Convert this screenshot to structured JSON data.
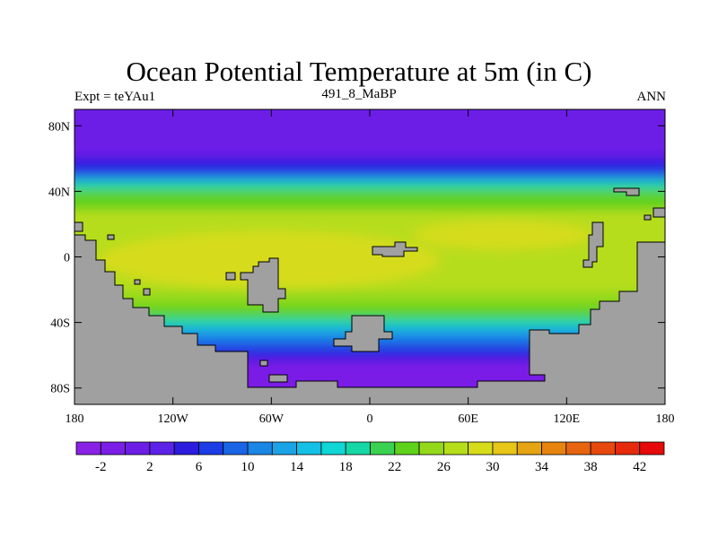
{
  "title": "Ocean Potential Temperature at 5m (in C)",
  "subtitle_left": "Expt = teYAu1",
  "subtitle_center": "491_8_MaBP",
  "subtitle_right": "ANN",
  "chart_data": {
    "type": "heatmap",
    "variable": "Ocean Potential Temperature",
    "units": "C",
    "depth": "5m",
    "x_range": [
      -180,
      180
    ],
    "y_range": [
      -90,
      90
    ],
    "x_ticks": [
      {
        "value": -180,
        "label": "180"
      },
      {
        "value": -120,
        "label": "120W"
      },
      {
        "value": -60,
        "label": "60W"
      },
      {
        "value": 0,
        "label": "0"
      },
      {
        "value": 60,
        "label": "60E"
      },
      {
        "value": 120,
        "label": "120E"
      },
      {
        "value": 180,
        "label": "180"
      }
    ],
    "y_ticks": [
      {
        "value": 80,
        "label": "80N"
      },
      {
        "value": 40,
        "label": "40N"
      },
      {
        "value": 0,
        "label": "0"
      },
      {
        "value": -40,
        "label": "40S"
      },
      {
        "value": -80,
        "label": "80S"
      }
    ],
    "colorbar": {
      "levels": [
        -4,
        -2,
        0,
        2,
        4,
        6,
        8,
        10,
        12,
        14,
        16,
        18,
        20,
        22,
        24,
        26,
        28,
        30,
        32,
        34,
        36,
        38,
        40,
        42,
        44
      ],
      "labels": [
        "-2",
        "2",
        "6",
        "10",
        "14",
        "18",
        "22",
        "26",
        "30",
        "34",
        "38",
        "42"
      ],
      "colors": [
        "#8a22e6",
        "#7a1fe6",
        "#6c1ee6",
        "#5d22e8",
        "#2b1ce0",
        "#1c3ce6",
        "#1a64e6",
        "#1a86e6",
        "#1aa4e6",
        "#15c0e6",
        "#10d6d6",
        "#16d8a6",
        "#3ad250",
        "#5ed11a",
        "#93d91a",
        "#b6dd1a",
        "#d6dc1a",
        "#e6c616",
        "#e6a412",
        "#e6840f",
        "#e6650e",
        "#e6480d",
        "#e62a0b",
        "#e60a0a"
      ]
    },
    "land_color": "#a0a0a0"
  }
}
